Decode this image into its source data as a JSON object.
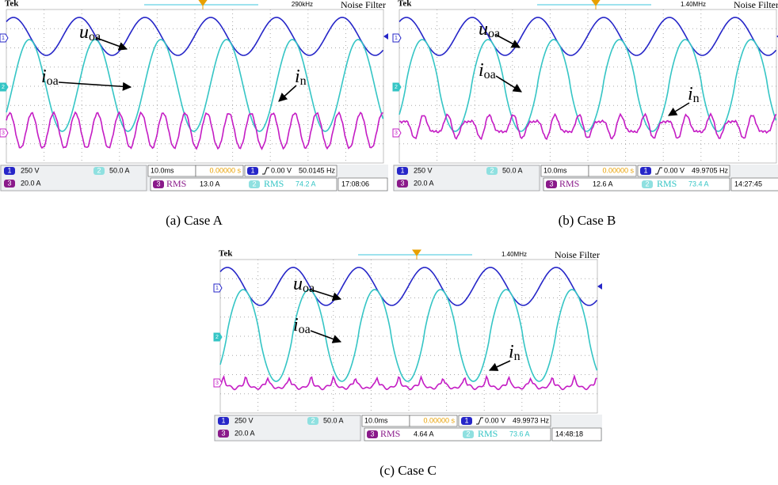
{
  "channel_numbers": [
    "1",
    "2",
    "3"
  ],
  "panels": [
    {
      "brand": "Tek",
      "bandwidth": "290kHz",
      "filter": "Noise Filter",
      "u_label": "u",
      "u_sub": "oa",
      "i_label": "i",
      "i_sub": "oa",
      "n_label": "i",
      "n_sub": "n",
      "ch1_scale": "250 V",
      "ch2_scale": "50.0 A",
      "ch3_scale": "20.0 A",
      "timebase": "10.0ms",
      "delay": "0.00000 s",
      "trigger_level": "0.00 V",
      "frequency": "50.0145 Hz",
      "rms_label": "RMS",
      "ch3_rms": "13.0 A",
      "ch2_rms": "74.2 A",
      "clock": "17:08:06",
      "caption": "(a) Case A"
    },
    {
      "brand": "Tek",
      "bandwidth": "1.40MHz",
      "filter": "Noise Filter",
      "u_label": "u",
      "u_sub": "oa",
      "i_label": "i",
      "i_sub": "oa",
      "n_label": "i",
      "n_sub": "n",
      "ch1_scale": "250 V",
      "ch2_scale": "50.0 A",
      "ch3_scale": "20.0 A",
      "timebase": "10.0ms",
      "delay": "0.00000 s",
      "trigger_level": "0.00 V",
      "frequency": "49.9705 Hz",
      "rms_label": "RMS",
      "ch3_rms": "12.6 A",
      "ch2_rms": "73.4 A",
      "clock": "14:27:45",
      "caption": "(b) Case B"
    },
    {
      "brand": "Tek",
      "bandwidth": "1.40MHz",
      "filter": "Noise Filter",
      "u_label": "u",
      "u_sub": "oa",
      "i_label": "i",
      "i_sub": "oa",
      "n_label": "i",
      "n_sub": "n",
      "ch1_scale": "250 V",
      "ch2_scale": "50.0 A",
      "ch3_scale": "20.0 A",
      "timebase": "10.0ms",
      "delay": "0.00000 s",
      "trigger_level": "0.00 V",
      "frequency": "49.9973 Hz",
      "rms_label": "RMS",
      "ch3_rms": "4.64 A",
      "ch2_rms": "73.6 A",
      "clock": "14:48:18",
      "caption": "(c) Case C"
    }
  ]
}
